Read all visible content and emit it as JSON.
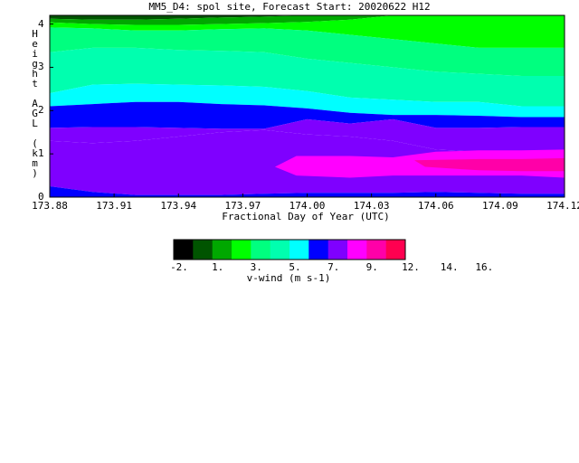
{
  "title": "MM5_D4: spol site,  Forecast Start: 20020622 H12",
  "chart_data": {
    "type": "heatmap",
    "title": "MM5_D4: spol site,  Forecast Start: 20020622 H12",
    "xlabel": "Fractional Day of Year (UTC)",
    "ylabel": "Height AGL (km)",
    "xlim": [
      173.88,
      174.12
    ],
    "ylim": [
      0,
      4.2
    ],
    "x_ticks": [
      "173.88",
      "173.91",
      "173.94",
      "173.97",
      "174.00",
      "174.03",
      "174.06",
      "174.09",
      "174.12"
    ],
    "y_ticks": [
      "0",
      "1",
      "2",
      "3",
      "4"
    ],
    "colorbar": {
      "label": "v-wind (m s-1)",
      "tick_labels": [
        "-2.",
        "1.",
        "3.",
        "5.",
        "7.",
        "9.",
        "12.",
        "14.",
        "16."
      ],
      "colors": [
        "#000000",
        "#005400",
        "#00a800",
        "#00ff00",
        "#00ff7f",
        "#00ffaf",
        "#00ffff",
        "#0000ff",
        "#7f00ff",
        "#ff00ff",
        "#ff00a8",
        "#ff0050"
      ]
    },
    "boundaries": {
      "x": [
        173.88,
        173.9,
        173.92,
        173.94,
        173.96,
        173.98,
        174.0,
        174.02,
        174.04,
        174.06,
        174.08,
        174.1,
        174.12
      ],
      "top": [
        4.2,
        4.2,
        4.2,
        4.2,
        4.2,
        4.2,
        4.2,
        4.2,
        4.2,
        4.2,
        4.2,
        4.2,
        4.2
      ],
      "c1": [
        4.12,
        4.1,
        4.1,
        4.12,
        4.15,
        4.17,
        4.2,
        4.2,
        4.2,
        4.2,
        4.2,
        4.2,
        4.2
      ],
      "c2": [
        4.04,
        4.0,
        3.98,
        3.98,
        4.0,
        4.02,
        4.05,
        4.1,
        4.2,
        4.2,
        4.2,
        4.2,
        4.2
      ],
      "c3": [
        3.92,
        3.9,
        3.85,
        3.85,
        3.88,
        3.9,
        3.85,
        3.75,
        3.65,
        3.55,
        3.45,
        3.45,
        3.45
      ],
      "c4": [
        3.35,
        3.45,
        3.45,
        3.4,
        3.38,
        3.35,
        3.2,
        3.1,
        3.0,
        2.9,
        2.85,
        2.8,
        2.8
      ],
      "c5": [
        2.4,
        2.6,
        2.62,
        2.6,
        2.58,
        2.55,
        2.45,
        2.3,
        2.25,
        2.2,
        2.2,
        2.1,
        2.1
      ],
      "c6": [
        2.1,
        2.15,
        2.2,
        2.2,
        2.15,
        2.12,
        2.05,
        1.95,
        1.9,
        1.9,
        1.88,
        1.85,
        1.85
      ],
      "c7": [
        1.6,
        1.62,
        1.62,
        1.6,
        1.58,
        1.58,
        1.8,
        1.7,
        1.8,
        1.6,
        1.6,
        1.62,
        1.62
      ],
      "c8": [
        1.3,
        1.25,
        1.3,
        1.4,
        1.5,
        1.55,
        1.45,
        1.4,
        1.3,
        1.1,
        1.05,
        1.05,
        1.05
      ],
      "c9": [
        0.25,
        0.12,
        0.05,
        0.05,
        0.05,
        0.08,
        0.1,
        0.1,
        0.1,
        0.12,
        0.1,
        0.08,
        0.08
      ],
      "bottom": [
        0,
        0,
        0,
        0,
        0,
        0,
        0,
        0,
        0,
        0,
        0,
        0,
        0
      ]
    },
    "band_colors": [
      "#005400",
      "#00a800",
      "#00ff00",
      "#00ff7f",
      "#00ffaf",
      "#00ffff",
      "#0000ff",
      "#7f00ff",
      "#7f00ff",
      "#0000ff"
    ],
    "magenta_region": {
      "x": [
        173.995,
        174.02,
        174.04,
        174.06,
        174.08,
        174.1,
        174.12,
        174.12,
        174.1,
        174.08,
        174.06,
        174.04,
        174.02,
        173.995,
        173.985
      ],
      "y": [
        0.95,
        0.95,
        0.92,
        1.05,
        1.08,
        1.08,
        1.1,
        0.45,
        0.5,
        0.5,
        0.5,
        0.5,
        0.45,
        0.5,
        0.7
      ]
    },
    "pink_region": {
      "x": [
        174.05,
        174.08,
        174.1,
        174.12,
        174.12,
        174.1,
        174.08,
        174.055
      ],
      "y": [
        0.85,
        0.88,
        0.88,
        0.9,
        0.6,
        0.6,
        0.62,
        0.7
      ]
    }
  }
}
